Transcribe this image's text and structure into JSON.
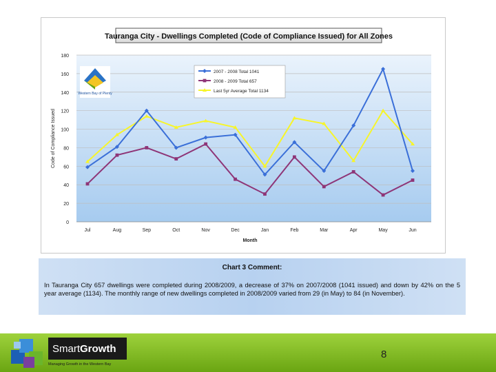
{
  "chart_data": {
    "type": "line",
    "title": "Tauranga City - Dwellings Completed (Code of Compliance Issued) for All Zones",
    "xlabel": "Month",
    "ylabel": "Code of Compliance Issued",
    "ylim": [
      0,
      180
    ],
    "yticks": [
      0,
      20,
      40,
      60,
      80,
      100,
      120,
      140,
      160,
      180
    ],
    "categories": [
      "Jul",
      "Aug",
      "Sep",
      "Oct",
      "Nov",
      "Dec",
      "Jan",
      "Feb",
      "Mar",
      "Apr",
      "May",
      "Jun"
    ],
    "legend_position": "top-center",
    "series": [
      {
        "name": "2007 - 2008   Total 1041",
        "color": "#3a6fd8",
        "marker": "diamond",
        "values": [
          59,
          81,
          120,
          80,
          91,
          94,
          51,
          86,
          55,
          104,
          165,
          55
        ]
      },
      {
        "name": "2008 - 2009   Total 657",
        "color": "#8e3577",
        "marker": "square",
        "values": [
          41,
          72,
          80,
          68,
          84,
          46,
          30,
          70,
          38,
          54,
          29,
          45
        ]
      },
      {
        "name": "Last 5yr Average   Total 1134",
        "color": "#f7f52a",
        "marker": "triangle",
        "values": [
          65,
          94,
          114,
          102,
          109,
          102,
          60,
          112,
          106,
          66,
          120,
          84
        ]
      }
    ],
    "inset_logo_text": "Western Bay of Plenty"
  },
  "comment": {
    "title": "Chart 3 Comment:",
    "text": "In Tauranga City 657 dwellings were completed during 2008/2009, a decrease of 37% on 2007/2008 (1041 issued) and down by 42% on the 5 year average (1134).  The monthly range of new dwellings completed in 2008/2009 varied from 29 (in May) to 84 (in November)."
  },
  "footer": {
    "logo_smart": "Smart",
    "logo_growth": "Growth",
    "logo_tagline": "Managing Growth in the Western Bay",
    "page_number": "8"
  },
  "colors": {
    "footer_green": "#7cbd1e",
    "plot_bg_start": "#eaf3fc",
    "plot_bg_end": "#9fc6ee"
  }
}
